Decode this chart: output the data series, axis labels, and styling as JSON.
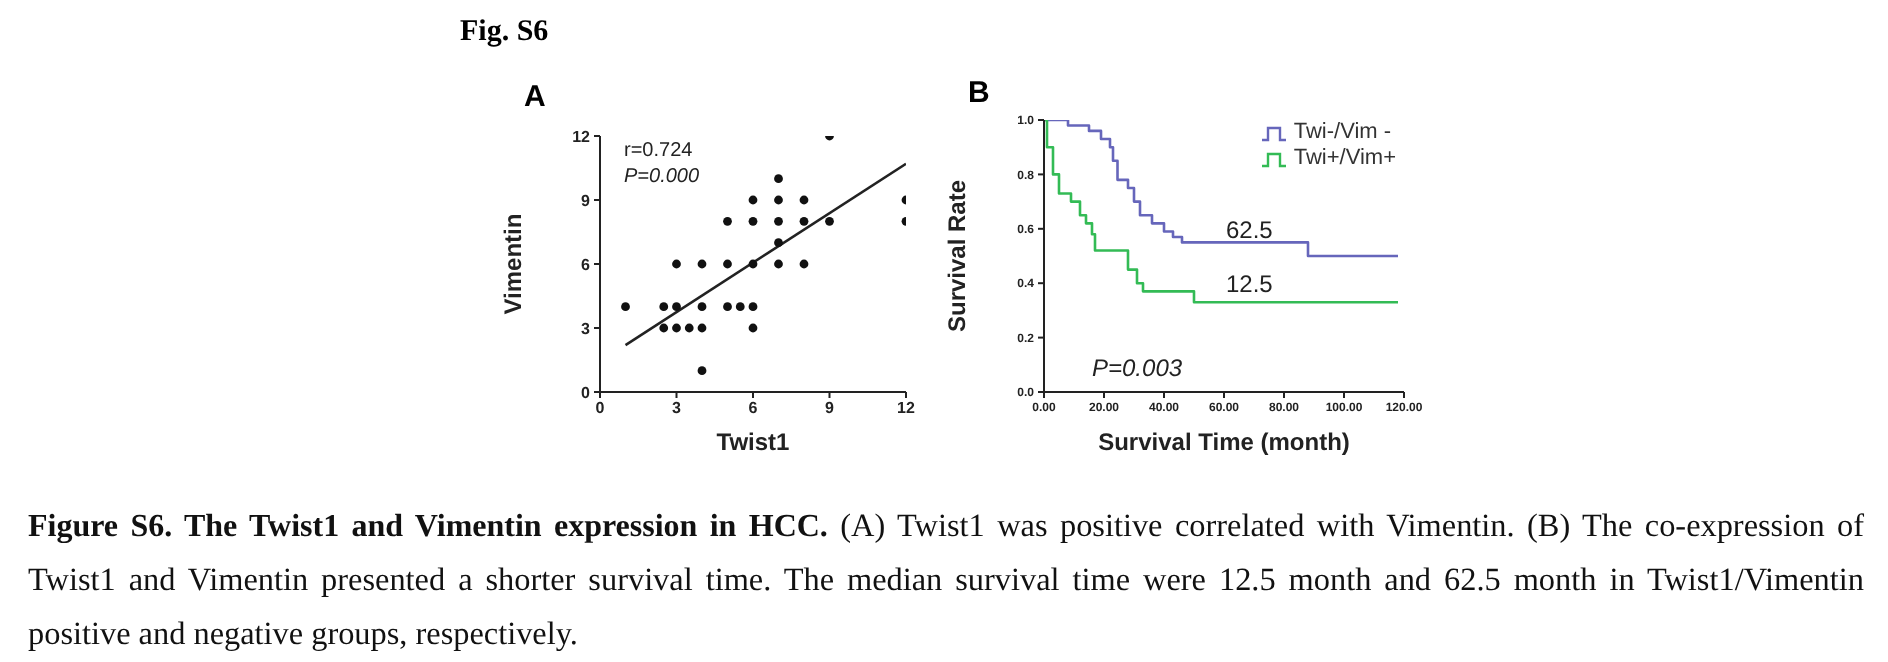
{
  "chart_data": [
    {
      "type": "scatter",
      "title": "A",
      "xlabel": "Twist1",
      "ylabel": "Vimentin",
      "xlim": [
        0,
        12
      ],
      "xticks": [
        0,
        3,
        6,
        9,
        12
      ],
      "ylim": [
        0,
        12
      ],
      "yticks": [
        0,
        3,
        6,
        9,
        12
      ],
      "annotations": [
        "r=0.724",
        "P=0.000",
        "Fig. S6",
        "Figure S6. The Twist1 and Vimentin expression in HCC.",
        "(A) Twist1 was positive correlated with Vimentin. (B) The co-expression of Twist1 and Vimentin presented a shorter survival time. The median survival time were 12.5 month and 62.5 month in Twist1/Vimentin positive and negative groups, respectively."
      ],
      "series": [
        {
          "marker": "circle",
          "color": "#111111",
          "x": [
            1,
            9,
            7,
            6,
            7,
            8,
            12,
            5,
            6,
            7,
            8,
            9,
            12,
            7,
            3,
            4,
            5,
            6,
            7,
            8,
            2.5,
            3,
            4,
            5,
            5.5,
            6,
            2.5,
            3,
            3.5,
            4,
            6,
            4
          ],
          "values": [
            4,
            12,
            10,
            9,
            9,
            9,
            9,
            8,
            8,
            8,
            8,
            8,
            8,
            7,
            6,
            6,
            6,
            6,
            6,
            6,
            4,
            4,
            4,
            4,
            4,
            4,
            3,
            3,
            3,
            3,
            3,
            1
          ]
        },
        {
          "type": "line",
          "color": "#222222",
          "x": [
            1,
            12
          ],
          "values": [
            2.2,
            10.7
          ]
        }
      ]
    },
    {
      "type": "step",
      "title": "B",
      "xlabel": "Survival Time (month)",
      "ylabel": "Survival Rate",
      "xlim": [
        0,
        120
      ],
      "xticks": [
        {
          "value": 0,
          "label": "0.00"
        },
        {
          "value": 20,
          "label": "20.00"
        },
        {
          "value": 40,
          "label": "40.00"
        },
        {
          "value": 60,
          "label": "60.00"
        },
        {
          "value": 80,
          "label": "80.00"
        },
        {
          "value": 100,
          "label": "100.00"
        },
        {
          "value": 120,
          "label": "120.00"
        }
      ],
      "ylim": [
        0,
        1
      ],
      "yticks": [
        {
          "value": 0,
          "label": "0.0"
        },
        0.2,
        0.4,
        0.6,
        0.8,
        {
          "value": 1,
          "label": "1.0"
        }
      ],
      "legend": "top right",
      "annotations": [
        "P=0.003",
        "62.5",
        "12.5"
      ],
      "series": [
        {
          "name": "Twi-/Vim -",
          "color": "#6666bb",
          "x": [
            0,
            8,
            15,
            19,
            22,
            23,
            24.5,
            28,
            30,
            32,
            36,
            40,
            43,
            46,
            88,
            118
          ],
          "values": [
            1,
            0.98,
            0.96,
            0.93,
            0.9,
            0.85,
            0.78,
            0.75,
            0.7,
            0.65,
            0.62,
            0.59,
            0.57,
            0.55,
            0.5,
            0.5
          ]
        },
        {
          "name": "Twi+/Vim+",
          "color": "#33bb55",
          "x": [
            0,
            1,
            3,
            5,
            9,
            12,
            14,
            16,
            17,
            28,
            31,
            33,
            50,
            118
          ],
          "values": [
            1,
            0.9,
            0.8,
            0.73,
            0.7,
            0.65,
            0.62,
            0.58,
            0.52,
            0.45,
            0.4,
            0.37,
            0.33,
            0.33
          ]
        }
      ]
    }
  ]
}
